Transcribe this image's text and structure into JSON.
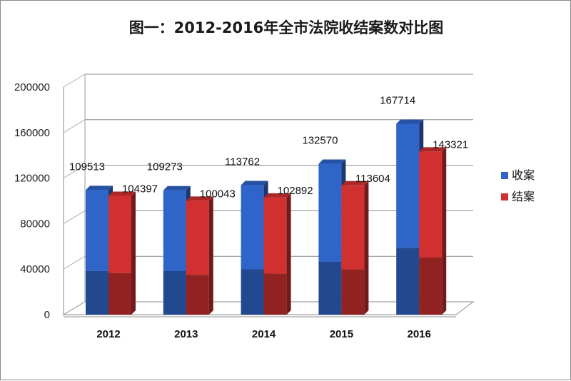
{
  "chart_data": {
    "type": "bar",
    "title": "图一：2012-2016年全市法院收结案数对比图",
    "categories": [
      "2012",
      "2013",
      "2014",
      "2015",
      "2016"
    ],
    "series": [
      {
        "name": "收案",
        "values": [
          109513,
          109273,
          113762,
          132570,
          167714
        ],
        "color": "#2f64c8"
      },
      {
        "name": "结案",
        "values": [
          104397,
          100043,
          102892,
          113604,
          143321
        ],
        "color": "#d03030"
      }
    ],
    "ylim": [
      0,
      200000
    ],
    "yticks": [
      0,
      40000,
      80000,
      120000,
      160000,
      200000
    ],
    "grid": true,
    "legend_position": "right",
    "style": "3d"
  }
}
